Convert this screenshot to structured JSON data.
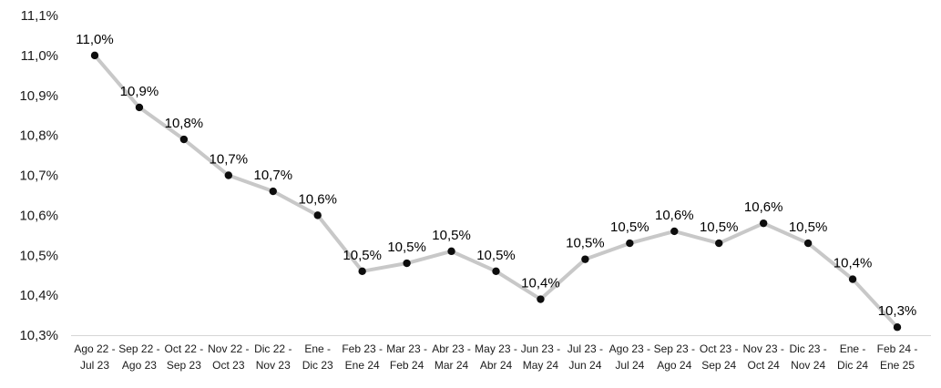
{
  "chart_data": {
    "type": "line",
    "title": "",
    "xlabel": "",
    "ylabel": "",
    "legend": "none",
    "grid": false,
    "ylim": [
      10.3,
      11.1
    ],
    "decimal_style": "comma",
    "series_color": "#c8c8c8",
    "marker_color": "#0d0d0d",
    "axis_line_color": "#d6d6d6",
    "categories": [
      [
        "Ago 22 -",
        "Jul 23"
      ],
      [
        "Sep 22 -",
        "Ago 23"
      ],
      [
        "Oct 22 -",
        "Sep 23"
      ],
      [
        "Nov 22 -",
        "Oct 23"
      ],
      [
        "Dic 22 -",
        "Nov 23"
      ],
      [
        "Ene -",
        "Dic 23"
      ],
      [
        "Feb 23 -",
        "Ene 24"
      ],
      [
        "Mar 23 -",
        "Feb 24"
      ],
      [
        "Abr 23 -",
        "Mar 24"
      ],
      [
        "May 23 -",
        "Abr 24"
      ],
      [
        "Jun 23 -",
        "May 24"
      ],
      [
        "Jul 23 -",
        "Jun 24"
      ],
      [
        "Ago 23 -",
        "Jul 24"
      ],
      [
        "Sep 23 -",
        "Ago 24"
      ],
      [
        "Oct 23 -",
        "Sep 24"
      ],
      [
        "Nov 23 -",
        "Oct 24"
      ],
      [
        "Dic 23 -",
        "Nov 24"
      ],
      [
        "Ene -",
        "Dic 24"
      ],
      [
        "Feb 24 -",
        "Ene 25"
      ]
    ],
    "values": [
      11.0,
      10.87,
      10.79,
      10.7,
      10.66,
      10.6,
      10.46,
      10.48,
      10.51,
      10.46,
      10.39,
      10.49,
      10.53,
      10.56,
      10.53,
      10.58,
      10.53,
      10.44,
      10.32
    ],
    "labels": [
      "11,0%",
      "10,9%",
      "10,8%",
      "10,7%",
      "10,7%",
      "10,6%",
      "10,5%",
      "10,5%",
      "10,5%",
      "10,5%",
      "10,4%",
      "10,5%",
      "10,5%",
      "10,6%",
      "10,5%",
      "10,6%",
      "10,5%",
      "10,4%",
      "10,3%"
    ],
    "y_ticks": [
      {
        "value": 10.3,
        "label": "10,3%"
      },
      {
        "value": 10.4,
        "label": "10,4%"
      },
      {
        "value": 10.5,
        "label": "10,5%"
      },
      {
        "value": 10.6,
        "label": "10,6%"
      },
      {
        "value": 10.7,
        "label": "10,7%"
      },
      {
        "value": 10.8,
        "label": "10,8%"
      },
      {
        "value": 10.9,
        "label": "10,9%"
      },
      {
        "value": 11.0,
        "label": "11,0%"
      },
      {
        "value": 11.1,
        "label": "11,1%"
      }
    ]
  }
}
